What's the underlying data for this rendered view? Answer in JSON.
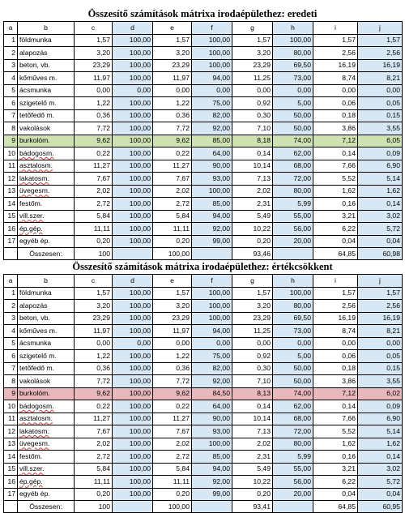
{
  "colors": {
    "highlight_original": "#cfe2b2",
    "highlight_depreciation": "#e8b8bd",
    "blue_column": "#d7e8f4"
  },
  "column_headers": [
    "a",
    "b",
    "c",
    "d",
    "e",
    "f",
    "g",
    "h",
    "i",
    "j"
  ],
  "tables": [
    {
      "title": "Összesítő számítások mátrixa irodaépülethez: eredeti",
      "highlight_row": 8,
      "highlight": "green",
      "rows": [
        [
          "1",
          "földmunka",
          "1,57",
          "100,00",
          "1,57",
          "100,00",
          "1,57",
          "100,00",
          "1,57",
          "1,57"
        ],
        [
          "2",
          "alapozás",
          "3,20",
          "100,00",
          "3,20",
          "100,00",
          "3,20",
          "80,00",
          "2,56",
          "2,56"
        ],
        [
          "3",
          "beton, vb.",
          "23,29",
          "100,00",
          "23,29",
          "100,00",
          "23,29",
          "69,50",
          "16,19",
          "16,19"
        ],
        [
          "4",
          "kőműves m.",
          "11,97",
          "100,00",
          "11,97",
          "94,00",
          "11,25",
          "73,00",
          "8,74",
          "8,21"
        ],
        [
          "5",
          "ácsmunka",
          "0,00",
          "0,00",
          "0,00",
          "0,00",
          "0,00",
          "0,00",
          "0,00",
          "0,00"
        ],
        [
          "6",
          "szigetelő m.",
          "1,22",
          "100,00",
          "1,22",
          "75,00",
          "0,92",
          "5,00",
          "0,06",
          "0,05"
        ],
        [
          "7",
          "tetőfedő m.",
          "0,36",
          "100,00",
          "0,36",
          "82,00",
          "0,30",
          "50,00",
          "0,18",
          "0,15"
        ],
        [
          "8",
          "vakolások",
          "7,72",
          "100,00",
          "7,72",
          "92,00",
          "7,10",
          "50,00",
          "3,86",
          "3,55"
        ],
        [
          "9",
          "burkolóm.",
          "9,62",
          "100,00",
          "9,62",
          "85,00",
          "8,18",
          "74,00",
          "7,12",
          "6,05"
        ],
        [
          "10",
          "bádogosm.",
          "0,22",
          "100,00",
          "0,22",
          "64,00",
          "0,14",
          "62,00",
          "0,14",
          "0,09"
        ],
        [
          "11",
          "asztalosm.",
          "11,27",
          "100,00",
          "11,27",
          "90,00",
          "10,14",
          "68,00",
          "7,66",
          "6,90"
        ],
        [
          "12",
          "lakatosm.",
          "7,67",
          "100,00",
          "7,67",
          "93,00",
          "7,13",
          "72,00",
          "5,52",
          "5,14"
        ],
        [
          "13",
          "üvegesm.",
          "2,02",
          "100,00",
          "2,02",
          "100,00",
          "2,02",
          "80,00",
          "1,62",
          "1,62"
        ],
        [
          "14",
          "festőm.",
          "2,72",
          "100,00",
          "2,72",
          "85,00",
          "2,31",
          "5,99",
          "0,16",
          "0,14"
        ],
        [
          "15",
          "vill.szer.",
          "5,84",
          "100,00",
          "5,84",
          "94,00",
          "5,49",
          "55,00",
          "3,21",
          "3,02"
        ],
        [
          "16",
          "ép.gép.",
          "11,11",
          "100,00",
          "11,11",
          "92,00",
          "10,22",
          "56,00",
          "6,22",
          "5,72"
        ],
        [
          "17",
          "egyéb ép.",
          "0,20",
          "100,00",
          "0,20",
          "99,00",
          "0,20",
          "20,00",
          "0,04",
          "0,04"
        ]
      ],
      "total": {
        "label": "Összesen:",
        "c": "100",
        "e": "100,00",
        "g": "93,46",
        "i": "64,85",
        "j": "60,98"
      }
    },
    {
      "title": "Összesítő számítások mátrixa irodaépülethez: értékcsökkent",
      "highlight_row": 8,
      "highlight": "red",
      "rows": [
        [
          "1",
          "földmunka",
          "1,57",
          "100,00",
          "1,57",
          "100,00",
          "1,57",
          "100,00",
          "1,57",
          "1,57"
        ],
        [
          "2",
          "alapozás",
          "3,20",
          "100,00",
          "3,20",
          "100,00",
          "3,20",
          "80,00",
          "2,56",
          "2,56"
        ],
        [
          "3",
          "beton, vb.",
          "23,29",
          "100,00",
          "23,29",
          "100,00",
          "23,29",
          "69,50",
          "16,19",
          "16,19"
        ],
        [
          "4",
          "kőműves m.",
          "11,97",
          "100,00",
          "11,97",
          "94,00",
          "11,25",
          "73,00",
          "8,74",
          "8,21"
        ],
        [
          "5",
          "ácsmunka",
          "0,00",
          "0,00",
          "0,00",
          "0,00",
          "0,00",
          "0,00",
          "0,00",
          "0,00"
        ],
        [
          "6",
          "szigetelő m.",
          "1,22",
          "100,00",
          "1,22",
          "75,00",
          "0,92",
          "5,00",
          "0,06",
          "0,05"
        ],
        [
          "7",
          "tetőfedő m.",
          "0,36",
          "100,00",
          "0,36",
          "82,00",
          "0,30",
          "50,00",
          "0,18",
          "0,15"
        ],
        [
          "8",
          "vakolások",
          "7,72",
          "100,00",
          "7,72",
          "92,00",
          "7,10",
          "50,00",
          "3,86",
          "3,55"
        ],
        [
          "9",
          "burkolóm.",
          "9,62",
          "100,00",
          "9,62",
          "84,50",
          "8,13",
          "74,00",
          "7,12",
          "6,02"
        ],
        [
          "10",
          "bádogosm.",
          "0,22",
          "100,00",
          "0,22",
          "64,00",
          "0,14",
          "62,00",
          "0,14",
          "0,09"
        ],
        [
          "11",
          "asztalosm.",
          "11,27",
          "100,00",
          "11,27",
          "90,00",
          "10,14",
          "68,00",
          "7,66",
          "6,90"
        ],
        [
          "12",
          "lakatosm.",
          "7,67",
          "100,00",
          "7,67",
          "93,00",
          "7,13",
          "72,00",
          "5,52",
          "5,14"
        ],
        [
          "13",
          "üvegesm.",
          "2,02",
          "100,00",
          "2,02",
          "100,00",
          "2,02",
          "80,00",
          "1,62",
          "1,62"
        ],
        [
          "14",
          "festőm.",
          "2,72",
          "100,00",
          "2,72",
          "85,00",
          "2,31",
          "5,99",
          "0,16",
          "0,14"
        ],
        [
          "15",
          "vill.szer.",
          "5,84",
          "100,00",
          "5,84",
          "94,00",
          "5,49",
          "55,00",
          "3,21",
          "3,02"
        ],
        [
          "16",
          "ép.gép.",
          "11,11",
          "100,00",
          "11,11",
          "92,00",
          "10,22",
          "56,00",
          "6,22",
          "5,72"
        ],
        [
          "17",
          "egyéb ép.",
          "0,20",
          "100,00",
          "0,20",
          "99,00",
          "0,20",
          "20,00",
          "0,04",
          "0,04"
        ]
      ],
      "total": {
        "label": "Összesen:",
        "c": "100",
        "e": "100,00",
        "g": "93,41",
        "i": "64,85",
        "j": "60,95"
      }
    }
  ]
}
